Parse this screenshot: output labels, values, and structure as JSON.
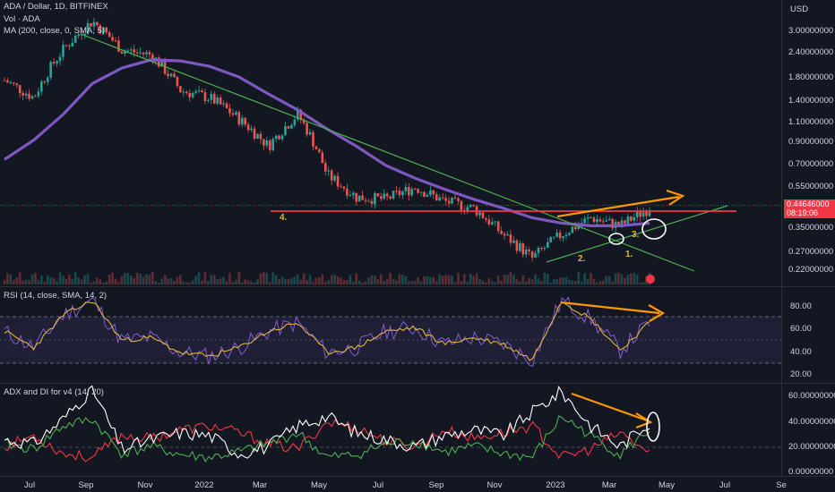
{
  "legends": {
    "title": "ADA / Dollar, 1D, BITFINEX",
    "volume": "Vol · ADA",
    "ma": "MA (200, close, 0, SMA, 5)",
    "rsi": "RSI (14, close, SMA, 14, 2)",
    "adx": "ADX and DI for v4 (14, 20)"
  },
  "price_axis": {
    "currency": "USD",
    "ticks": [
      "3.00000000",
      "2.40000000",
      "1.80000000",
      "1.40000000",
      "1.10000000",
      "0.90000000",
      "0.70000000",
      "0.55000000",
      "0.35000000",
      "0.27000000",
      "0.22000000"
    ],
    "last_price": "0.44646000",
    "countdown": "08:19:06"
  },
  "rsi_axis": {
    "ticks": [
      "80.00",
      "60.00",
      "40.00",
      "20.00"
    ]
  },
  "adx_axis": {
    "ticks": [
      "60.00000000",
      "40.00000000",
      "20.00000000",
      "0.00000000"
    ]
  },
  "time_axis": {
    "ticks": [
      "Jul",
      "Sep",
      "Nov",
      "2022",
      "Mar",
      "May",
      "Jul",
      "Sep",
      "Nov",
      "2023",
      "Mar",
      "May",
      "Jul",
      "Se"
    ]
  },
  "annotations": {
    "a1": "1.",
    "a2": "2.",
    "a3": "3.",
    "a4": "4."
  },
  "colors": {
    "background": "#131722",
    "up": "#26a69a",
    "down": "#ef5350",
    "ma": "#7e57c2",
    "trend": "#4caf50",
    "support": "#f23645",
    "arrow": "#ff9800",
    "rsi": "#7e57c2",
    "rsi_ma": "#e0b43c",
    "adx": "#ffffff",
    "di_plus": "#4caf50",
    "di_minus": "#f23645"
  },
  "chart_data": [
    {
      "type": "candlestick",
      "title": "ADA / Dollar, 1D, BITFINEX",
      "ylabel": "USD",
      "ylim": [
        0.2,
        3.4
      ],
      "scale": "log",
      "x": [
        "2021-06",
        "2021-07",
        "2021-08",
        "2021-09",
        "2021-10",
        "2021-11",
        "2021-12",
        "2022-01",
        "2022-02",
        "2022-03",
        "2022-04",
        "2022-05",
        "2022-06",
        "2022-07",
        "2022-08",
        "2022-09",
        "2022-10",
        "2022-11",
        "2022-12",
        "2023-01",
        "2023-02",
        "2023-03",
        "2023-04"
      ],
      "close": [
        1.55,
        1.3,
        2.1,
        2.8,
        2.1,
        2.0,
        1.4,
        1.3,
        1.05,
        0.8,
        1.1,
        0.6,
        0.48,
        0.47,
        0.53,
        0.46,
        0.43,
        0.33,
        0.26,
        0.33,
        0.39,
        0.36,
        0.43
      ],
      "series": [
        {
          "name": "MA (200, close, 0, SMA, 5)",
          "values": [
            0.7,
            0.85,
            1.1,
            1.5,
            1.75,
            1.9,
            1.88,
            1.78,
            1.6,
            1.35,
            1.15,
            0.95,
            0.8,
            0.66,
            0.58,
            0.52,
            0.47,
            0.43,
            0.39,
            0.37,
            0.36,
            0.36,
            0.37
          ]
        }
      ],
      "last_price": 0.44646
    },
    {
      "type": "line",
      "title": "RSI (14, close, SMA, 14, 2)",
      "ylim": [
        15,
        90
      ],
      "series": [
        {
          "name": "RSI",
          "values": [
            55,
            42,
            68,
            80,
            48,
            50,
            38,
            35,
            42,
            55,
            62,
            38,
            42,
            55,
            58,
            45,
            50,
            45,
            32,
            80,
            65,
            40,
            62
          ]
        }
      ]
    },
    {
      "type": "line",
      "title": "ADX and DI for v4 (14, 20)",
      "ylim": [
        0,
        65
      ],
      "series": [
        {
          "name": "ADX",
          "values": [
            25,
            22,
            40,
            62,
            18,
            25,
            30,
            28,
            15,
            20,
            35,
            42,
            30,
            25,
            20,
            28,
            32,
            28,
            45,
            60,
            35,
            20,
            38
          ]
        },
        {
          "name": "DI+",
          "values": [
            22,
            18,
            35,
            40,
            15,
            20,
            14,
            12,
            16,
            22,
            30,
            12,
            14,
            22,
            24,
            16,
            20,
            15,
            12,
            42,
            28,
            14,
            32
          ]
        },
        {
          "name": "DI-",
          "values": [
            20,
            28,
            15,
            12,
            28,
            26,
            32,
            35,
            30,
            22,
            18,
            38,
            34,
            24,
            20,
            32,
            26,
            30,
            35,
            12,
            18,
            30,
            15
          ]
        }
      ]
    }
  ]
}
